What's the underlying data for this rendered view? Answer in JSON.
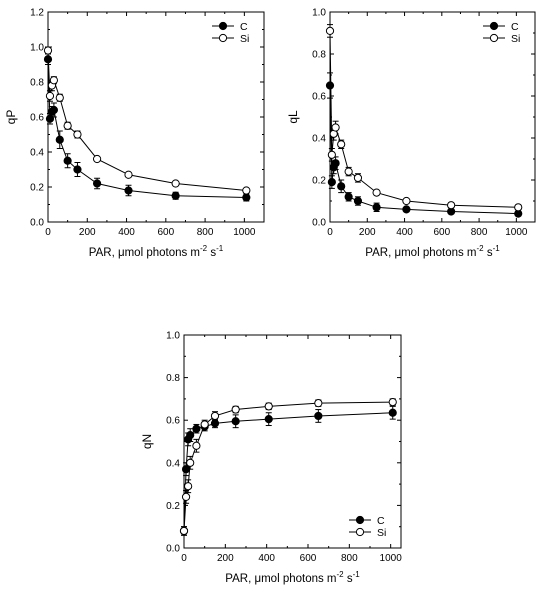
{
  "chart_data": [
    {
      "type": "scatter",
      "id": "qP",
      "ylabel": "qP",
      "xlabel_main": "PAR, μmol photons m",
      "xlabel_exp1": "-2",
      "xlabel_mid": " s",
      "xlabel_exp2": "-1",
      "xlim": [
        0,
        1100
      ],
      "ylim": [
        0,
        1.2
      ],
      "xticks": [
        "0",
        "200",
        "400",
        "600",
        "800",
        "1000"
      ],
      "yticks": [
        "0.0",
        "0.2",
        "0.4",
        "0.6",
        "0.8",
        "1.0",
        "1.2"
      ],
      "legend_position": "top-right",
      "x": [
        0,
        10,
        20,
        30,
        60,
        100,
        150,
        250,
        410,
        650,
        1010
      ],
      "series": [
        {
          "name": "C",
          "marker": "filled",
          "values": [
            0.93,
            0.59,
            0.63,
            0.64,
            0.47,
            0.35,
            0.3,
            0.22,
            0.18,
            0.15,
            0.14
          ],
          "errors": [
            0.03,
            0.03,
            0.03,
            0.04,
            0.05,
            0.04,
            0.04,
            0.03,
            0.03,
            0.02,
            0.02
          ]
        },
        {
          "name": "Si",
          "marker": "open",
          "values": [
            0.98,
            0.72,
            0.78,
            0.81,
            0.71,
            0.55,
            0.5,
            0.36,
            0.27,
            0.22,
            0.18
          ],
          "errors": [
            0.02,
            0.03,
            0.03,
            0.02,
            0.02,
            0.02,
            0.02,
            0.01,
            0.01,
            0.01,
            0.01
          ]
        }
      ]
    },
    {
      "type": "scatter",
      "id": "qL",
      "ylabel": "qL",
      "xlabel_main": "PAR, μmol photons m",
      "xlabel_exp1": "-2",
      "xlabel_mid": " s",
      "xlabel_exp2": "-1",
      "xlim": [
        0,
        1100
      ],
      "ylim": [
        0,
        1.0
      ],
      "xticks": [
        "0",
        "200",
        "400",
        "600",
        "800",
        "1000"
      ],
      "yticks": [
        "0.0",
        "0.2",
        "0.4",
        "0.6",
        "0.8",
        "1.0"
      ],
      "legend_position": "top-right",
      "x": [
        0,
        10,
        20,
        30,
        60,
        100,
        150,
        250,
        410,
        650,
        1010
      ],
      "series": [
        {
          "name": "C",
          "marker": "filled",
          "values": [
            0.65,
            0.19,
            0.26,
            0.28,
            0.17,
            0.12,
            0.1,
            0.07,
            0.06,
            0.05,
            0.04
          ],
          "errors": [
            0.06,
            0.03,
            0.03,
            0.03,
            0.03,
            0.02,
            0.02,
            0.02,
            0.01,
            0.01,
            0.01
          ]
        },
        {
          "name": "Si",
          "marker": "open",
          "values": [
            0.91,
            0.32,
            0.42,
            0.45,
            0.37,
            0.24,
            0.21,
            0.14,
            0.1,
            0.08,
            0.07
          ],
          "errors": [
            0.03,
            0.03,
            0.03,
            0.03,
            0.02,
            0.02,
            0.02,
            0.01,
            0.01,
            0.01,
            0.01
          ]
        }
      ]
    },
    {
      "type": "scatter",
      "id": "qN",
      "ylabel": "qN",
      "xlabel_main": "PAR, μmol photons m",
      "xlabel_exp1": "-2",
      "xlabel_mid": " s",
      "xlabel_exp2": "-1",
      "xlim": [
        0,
        1050
      ],
      "ylim": [
        0,
        1.0
      ],
      "xticks": [
        "0",
        "200",
        "400",
        "600",
        "800",
        "1000"
      ],
      "yticks": [
        "0.0",
        "0.2",
        "0.4",
        "0.6",
        "0.8",
        "1.0"
      ],
      "legend_position": "bottom-right",
      "x": [
        0,
        10,
        20,
        30,
        60,
        100,
        150,
        250,
        410,
        650,
        1010
      ],
      "series": [
        {
          "name": "C",
          "marker": "filled",
          "values": [
            0.08,
            0.37,
            0.51,
            0.53,
            0.56,
            0.57,
            0.585,
            0.595,
            0.605,
            0.62,
            0.635
          ],
          "errors": [
            0.02,
            0.03,
            0.03,
            0.03,
            0.02,
            0.02,
            0.02,
            0.03,
            0.03,
            0.03,
            0.03
          ]
        },
        {
          "name": "Si",
          "marker": "open",
          "values": [
            0.08,
            0.24,
            0.29,
            0.4,
            0.48,
            0.58,
            0.62,
            0.65,
            0.665,
            0.68,
            0.685
          ],
          "errors": [
            0.02,
            0.03,
            0.03,
            0.03,
            0.03,
            0.02,
            0.02,
            0.015,
            0.015,
            0.015,
            0.015
          ]
        }
      ]
    }
  ]
}
